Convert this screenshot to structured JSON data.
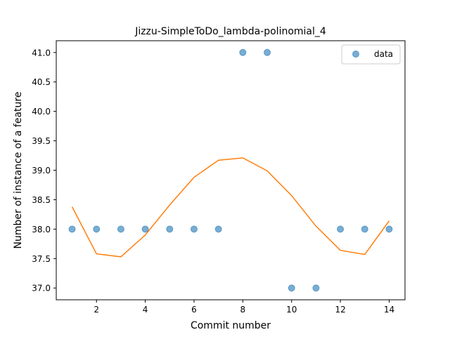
{
  "chart_data": {
    "type": "scatter",
    "title": "Jizzu-SimpleToDo_lambda-polinomial_4",
    "xlabel": "Commit number",
    "ylabel": "Number of instance of a feature",
    "xlim": [
      0.35,
      14.65
    ],
    "ylim": [
      36.8,
      41.2
    ],
    "xticks": [
      2,
      4,
      6,
      8,
      10,
      12,
      14
    ],
    "xtick_labels": [
      "2",
      "4",
      "6",
      "8",
      "10",
      "12",
      "14"
    ],
    "yticks": [
      37.0,
      37.5,
      38.0,
      38.5,
      39.0,
      39.5,
      40.0,
      40.5,
      41.0
    ],
    "ytick_labels": [
      "37.0",
      "37.5",
      "38.0",
      "38.5",
      "39.0",
      "39.5",
      "40.0",
      "40.5",
      "41.0"
    ],
    "grid": false,
    "legend_position": "top-right",
    "series": [
      {
        "name": "data",
        "kind": "scatter",
        "color": "#1f77b4",
        "x": [
          1,
          2,
          3,
          4,
          5,
          6,
          7,
          8,
          9,
          10,
          11,
          12,
          13,
          14
        ],
        "y": [
          38,
          38,
          38,
          38,
          38,
          38,
          38,
          41,
          41,
          37,
          37,
          38,
          38,
          38
        ]
      },
      {
        "kind": "line",
        "color": "#ff7f0e",
        "x": [
          1,
          2,
          3,
          4,
          5,
          6,
          7,
          8,
          9,
          10,
          11,
          12,
          13,
          14
        ],
        "y": [
          38.38,
          37.58,
          37.53,
          37.9,
          38.41,
          38.88,
          39.17,
          39.21,
          38.99,
          38.57,
          38.05,
          37.64,
          37.57,
          38.14
        ]
      }
    ]
  }
}
